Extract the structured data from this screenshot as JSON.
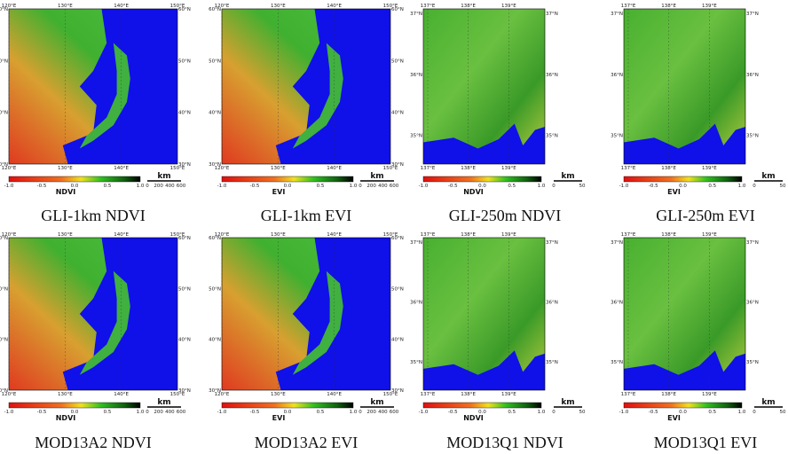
{
  "large_scale": {
    "lon": [
      "120°E",
      "130°E",
      "140°E",
      "150°E"
    ],
    "lat": [
      "60°N",
      "50°N",
      "40°N",
      "30°N"
    ],
    "scale_unit": "km",
    "scale_ticks": [
      "0",
      "200",
      "400",
      "600"
    ],
    "panels": [
      {
        "caption": "GLI-1km NDVI",
        "index": "NDVI"
      },
      {
        "caption": "GLI-1km EVI",
        "index": "EVI"
      },
      {
        "caption": "MOD13A2 NDVI",
        "index": "NDVI"
      },
      {
        "caption": "MOD13A2 EVI",
        "index": "EVI"
      }
    ]
  },
  "small_scale": {
    "lon": [
      "137°E",
      "138°E",
      "139°E"
    ],
    "lat": [
      "37°N",
      "36°N",
      "35°N"
    ],
    "scale_unit": "km",
    "scale_ticks": [
      "0",
      "50"
    ],
    "panels": [
      {
        "caption": "GLI-250m NDVI",
        "index": "NDVI"
      },
      {
        "caption": "GLI-250m EVI",
        "index": "EVI"
      },
      {
        "caption": "MOD13Q1 NDVI",
        "index": "NDVI"
      },
      {
        "caption": "MOD13Q1 EVI",
        "index": "EVI"
      }
    ]
  },
  "colorbar_ticks": [
    "-1.0",
    "-0.5",
    "0.0",
    "0.5",
    "1.0"
  ]
}
